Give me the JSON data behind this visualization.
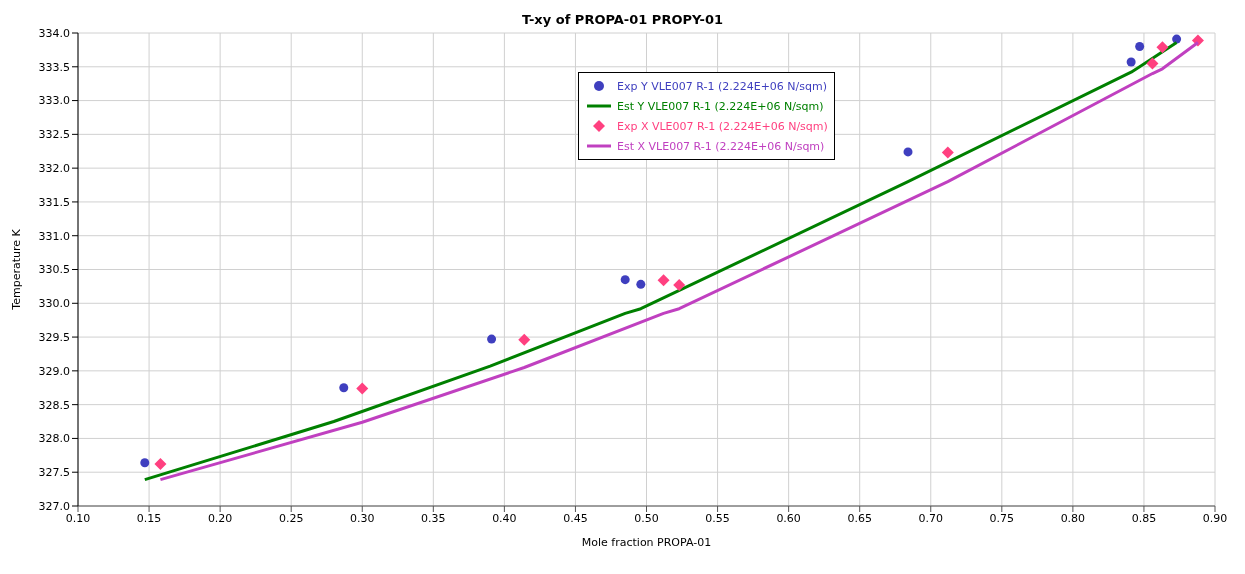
{
  "chart_data": {
    "type": "scatter",
    "title": "T-xy of PROPA-01 PROPY-01",
    "xlabel": "Mole fraction PROPA-01",
    "ylabel": "Temperature K",
    "xlim": [
      0.1,
      0.9
    ],
    "xticks": [
      {
        "value": 0.1,
        "label": "0.10"
      },
      {
        "value": 0.15,
        "label": "0.15"
      },
      {
        "value": 0.2,
        "label": "0.20"
      },
      {
        "value": 0.25,
        "label": "0.25"
      },
      {
        "value": 0.3,
        "label": "0.30"
      },
      {
        "value": 0.35,
        "label": "0.35"
      },
      {
        "value": 0.4,
        "label": "0.40"
      },
      {
        "value": 0.45,
        "label": "0.45"
      },
      {
        "value": 0.5,
        "label": "0.50"
      },
      {
        "value": 0.55,
        "label": "0.55"
      },
      {
        "value": 0.6,
        "label": "0.60"
      },
      {
        "value": 0.65,
        "label": "0.65"
      },
      {
        "value": 0.7,
        "label": "0.70"
      },
      {
        "value": 0.75,
        "label": "0.75"
      },
      {
        "value": 0.8,
        "label": "0.80"
      },
      {
        "value": 0.85,
        "label": "0.85"
      },
      {
        "value": 0.9,
        "label": "0.90"
      }
    ],
    "ylim": [
      327,
      334
    ],
    "yticks": [
      {
        "value": 327,
        "label": "327.0"
      },
      {
        "value": 327.5,
        "label": "327.5"
      },
      {
        "value": 328,
        "label": "328.0"
      },
      {
        "value": 328.5,
        "label": "328.5"
      },
      {
        "value": 329,
        "label": "329.0"
      },
      {
        "value": 329.5,
        "label": "329.5"
      },
      {
        "value": 330,
        "label": "330.0"
      },
      {
        "value": 330.5,
        "label": "330.5"
      },
      {
        "value": 331,
        "label": "331.0"
      },
      {
        "value": 331.5,
        "label": "331.5"
      },
      {
        "value": 332,
        "label": "332.0"
      },
      {
        "value": 332.5,
        "label": "332.5"
      },
      {
        "value": 333,
        "label": "333.0"
      },
      {
        "value": 333.5,
        "label": "333.5"
      },
      {
        "value": 334,
        "label": "334.0"
      }
    ],
    "grid": true,
    "legend": "top",
    "series": [
      {
        "name": "Exp Y VLE007 R-1 (2.224E+06 N/sqm)",
        "marker": "circle",
        "color": "#3f3fbf",
        "x": [
          0.147,
          0.287,
          0.391,
          0.485,
          0.496,
          0.684,
          0.841,
          0.847,
          0.873
        ],
        "values": [
          327.64,
          328.75,
          329.47,
          330.35,
          330.28,
          332.24,
          333.57,
          333.8,
          333.91
        ]
      },
      {
        "name": "Est Y VLE007 R-1 (2.224E+06 N/sqm)",
        "type": "line",
        "marker": "none",
        "color": "#008000",
        "x": [
          0.147,
          0.28,
          0.39,
          0.485,
          0.496,
          0.684,
          0.841,
          0.847,
          0.873
        ],
        "values": [
          327.39,
          328.25,
          329.07,
          329.85,
          329.92,
          331.8,
          333.42,
          333.5,
          333.86
        ]
      },
      {
        "name": "Exp X VLE007 R-1 (2.224E+06 N/sqm)",
        "marker": "diamond",
        "color": "#ff4080",
        "x": [
          0.158,
          0.3,
          0.414,
          0.512,
          0.523,
          0.712,
          0.856,
          0.863,
          0.888
        ],
        "values": [
          327.62,
          328.74,
          329.46,
          330.34,
          330.27,
          332.23,
          333.55,
          333.79,
          333.89
        ]
      },
      {
        "name": "Est X VLE007 R-1 (2.224E+06 N/sqm)",
        "type": "line",
        "marker": "none",
        "color": "#c040c0",
        "x": [
          0.158,
          0.3,
          0.414,
          0.512,
          0.523,
          0.712,
          0.856,
          0.863,
          0.888
        ],
        "values": [
          327.39,
          328.24,
          329.05,
          329.85,
          329.92,
          331.8,
          333.4,
          333.47,
          333.86
        ]
      }
    ]
  }
}
